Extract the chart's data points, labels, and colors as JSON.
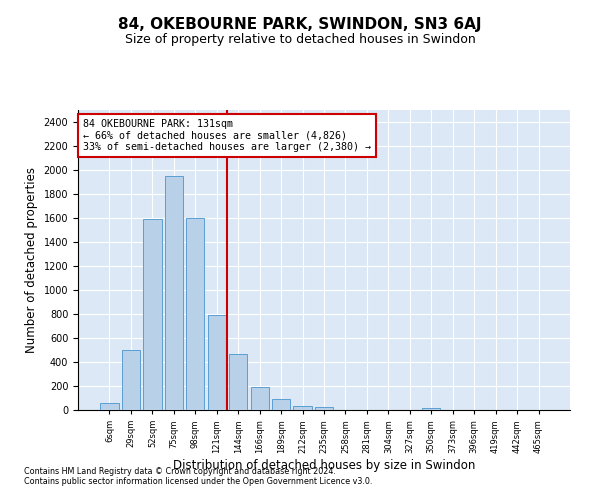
{
  "title": "84, OKEBOURNE PARK, SWINDON, SN3 6AJ",
  "subtitle": "Size of property relative to detached houses in Swindon",
  "xlabel": "Distribution of detached houses by size in Swindon",
  "ylabel": "Number of detached properties",
  "categories": [
    "6sqm",
    "29sqm",
    "52sqm",
    "75sqm",
    "98sqm",
    "121sqm",
    "144sqm",
    "166sqm",
    "189sqm",
    "212sqm",
    "235sqm",
    "258sqm",
    "281sqm",
    "304sqm",
    "327sqm",
    "350sqm",
    "373sqm",
    "396sqm",
    "419sqm",
    "442sqm",
    "465sqm"
  ],
  "values": [
    60,
    500,
    1590,
    1950,
    1600,
    790,
    470,
    195,
    90,
    35,
    25,
    0,
    0,
    0,
    0,
    20,
    0,
    0,
    0,
    0,
    0
  ],
  "bar_color": "#b8d0e8",
  "bar_edge_color": "#5a9fd4",
  "vline_color": "#cc0000",
  "annotation_text": "84 OKEBOURNE PARK: 131sqm\n← 66% of detached houses are smaller (4,826)\n33% of semi-detached houses are larger (2,380) →",
  "annotation_box_color": "#cc0000",
  "ylim": [
    0,
    2500
  ],
  "yticks": [
    0,
    200,
    400,
    600,
    800,
    1000,
    1200,
    1400,
    1600,
    1800,
    2000,
    2200,
    2400
  ],
  "plot_bg_color": "#dce8f5",
  "footer_line1": "Contains HM Land Registry data © Crown copyright and database right 2024.",
  "footer_line2": "Contains public sector information licensed under the Open Government Licence v3.0.",
  "title_fontsize": 11,
  "subtitle_fontsize": 9,
  "xlabel_fontsize": 8.5,
  "ylabel_fontsize": 8.5,
  "vline_bin_index": 5.5
}
